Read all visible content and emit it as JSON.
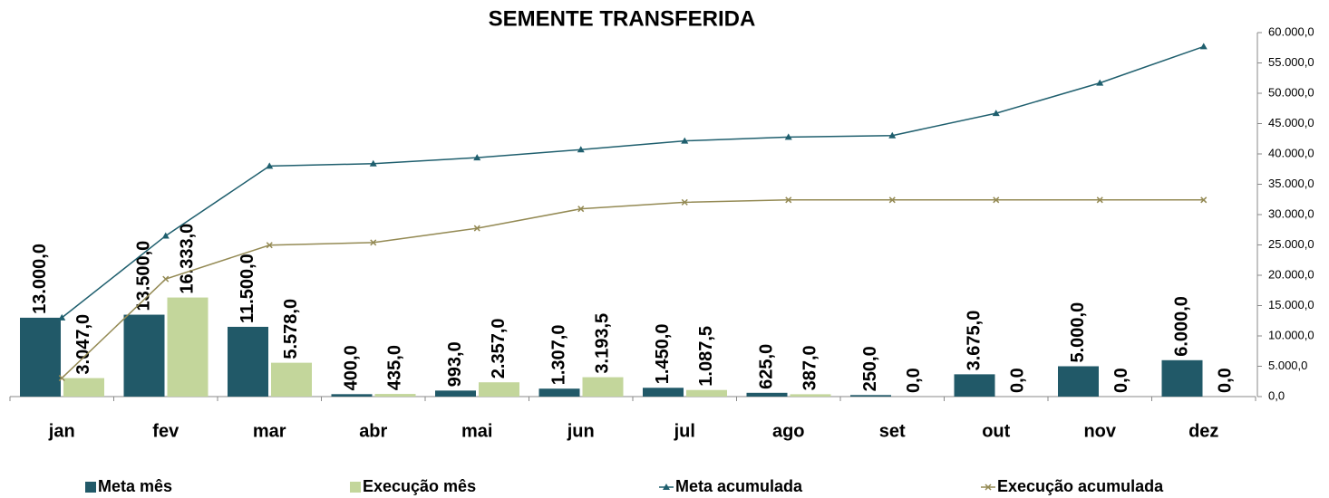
{
  "chart_data": {
    "type": "bar",
    "title": "SEMENTE TRANSFERIDA",
    "categories": [
      "jan",
      "fev",
      "mar",
      "abr",
      "mai",
      "jun",
      "jul",
      "ago",
      "set",
      "out",
      "nov",
      "dez"
    ],
    "series": [
      {
        "name": "Meta mês",
        "type": "bar",
        "color": "#215968",
        "values": [
          13000,
          13500,
          11500,
          400,
          993,
          1307,
          1450,
          625,
          250,
          3675,
          5000,
          6000
        ],
        "value_labels": [
          "13.000,0",
          "13.500,0",
          "11.500,0",
          "400,0",
          "993,0",
          "1.307,0",
          "1.450,0",
          "625,0",
          "250,0",
          "3.675,0",
          "5.000,0",
          "6.000,0"
        ]
      },
      {
        "name": "Execução mês",
        "type": "bar",
        "color": "#c3d69b",
        "values": [
          3047,
          16333,
          5578,
          435,
          2357,
          3193.5,
          1087.5,
          387,
          0,
          0,
          0,
          0
        ],
        "value_labels": [
          "3.047,0",
          "16.333,0",
          "5.578,0",
          "435,0",
          "2.357,0",
          "3.193,5",
          "1.087,5",
          "387,0",
          "0,0",
          "0,0",
          "0,0",
          "0,0"
        ]
      },
      {
        "name": "Meta acumulada",
        "type": "line",
        "marker": "triangle",
        "color": "#1f5f6e",
        "values": [
          13000,
          26500,
          38000,
          38400,
          39393,
          40700,
          42150,
          42775,
          43025,
          46700,
          51700,
          57700
        ]
      },
      {
        "name": "Execução acumulada",
        "type": "line",
        "marker": "x",
        "color": "#948a54",
        "values": [
          3047,
          19380,
          24958,
          25393,
          27750,
          30943.5,
          32031,
          32418,
          32418,
          32418,
          32418,
          32418
        ]
      }
    ],
    "ylim": [
      0,
      60000
    ],
    "yticks": [
      {
        "value": 0,
        "label": "0,0"
      },
      {
        "value": 5000,
        "label": "5.000,0"
      },
      {
        "value": 10000,
        "label": "10.000,0"
      },
      {
        "value": 15000,
        "label": "15.000,0"
      },
      {
        "value": 20000,
        "label": "20.000,0"
      },
      {
        "value": 25000,
        "label": "25.000,0"
      },
      {
        "value": 30000,
        "label": "30.000,0"
      },
      {
        "value": 35000,
        "label": "35.000,0"
      },
      {
        "value": 40000,
        "label": "40.000,0"
      },
      {
        "value": 45000,
        "label": "45.000,0"
      },
      {
        "value": 50000,
        "label": "50.000,0"
      },
      {
        "value": 55000,
        "label": "55.000,0"
      },
      {
        "value": 60000,
        "label": "60.000,0"
      }
    ],
    "y_axis_side": "right",
    "legend": "bottom"
  }
}
